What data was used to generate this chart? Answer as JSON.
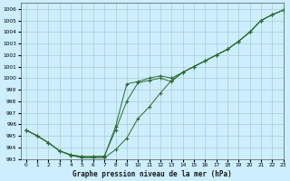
{
  "title": "Graphe pression niveau de la mer (hPa)",
  "background_color": "#cceeff",
  "grid_color": "#aacccc",
  "line_color": "#2d6a2d",
  "xlim": [
    -0.5,
    23
  ],
  "ylim": [
    993,
    1006.5
  ],
  "xticks": [
    0,
    1,
    2,
    3,
    4,
    5,
    6,
    7,
    8,
    9,
    10,
    11,
    12,
    13,
    14,
    15,
    16,
    17,
    18,
    19,
    20,
    21,
    22,
    23
  ],
  "yticks": [
    993,
    994,
    995,
    996,
    997,
    998,
    999,
    1000,
    1001,
    1002,
    1003,
    1004,
    1005,
    1006
  ],
  "series1_x": [
    0,
    1,
    2,
    3,
    4,
    5,
    6,
    7,
    8,
    9,
    10,
    11,
    12,
    13,
    14,
    15,
    16,
    17,
    18,
    19,
    20,
    21,
    22,
    23
  ],
  "series1_y": [
    995.5,
    995.0,
    994.4,
    993.7,
    993.35,
    993.2,
    993.2,
    993.25,
    995.5,
    998.0,
    999.6,
    999.8,
    1000.0,
    999.7,
    1000.5,
    1001.0,
    1001.5,
    1002.0,
    1002.5,
    1003.2,
    1004.0,
    1005.0,
    1005.5,
    1005.9
  ],
  "series2_x": [
    0,
    1,
    2,
    3,
    4,
    5,
    6,
    7,
    8,
    9,
    10,
    11,
    12,
    13,
    14,
    15,
    16,
    17,
    18,
    19,
    20,
    21,
    22,
    23
  ],
  "series2_y": [
    995.5,
    995.0,
    994.4,
    993.7,
    993.3,
    993.1,
    993.1,
    993.1,
    993.8,
    994.8,
    996.5,
    997.5,
    998.7,
    999.8,
    1000.5,
    1001.0,
    1001.5,
    1002.0,
    1002.5,
    1003.2,
    1004.0,
    1005.0,
    1005.5,
    1005.9
  ],
  "series3_x": [
    0,
    1,
    2,
    3,
    4,
    5,
    6,
    7,
    8,
    9,
    10,
    11,
    12,
    13,
    14,
    15,
    16,
    17,
    18,
    19,
    20,
    21,
    22,
    23
  ],
  "series3_y": [
    995.5,
    995.0,
    994.4,
    993.7,
    993.35,
    993.2,
    993.2,
    993.2,
    995.8,
    999.5,
    999.7,
    1000.0,
    1000.2,
    1000.0,
    1000.5,
    1001.0,
    1001.5,
    1002.0,
    1002.5,
    1003.2,
    1004.0,
    1005.0,
    1005.5,
    1005.9
  ]
}
